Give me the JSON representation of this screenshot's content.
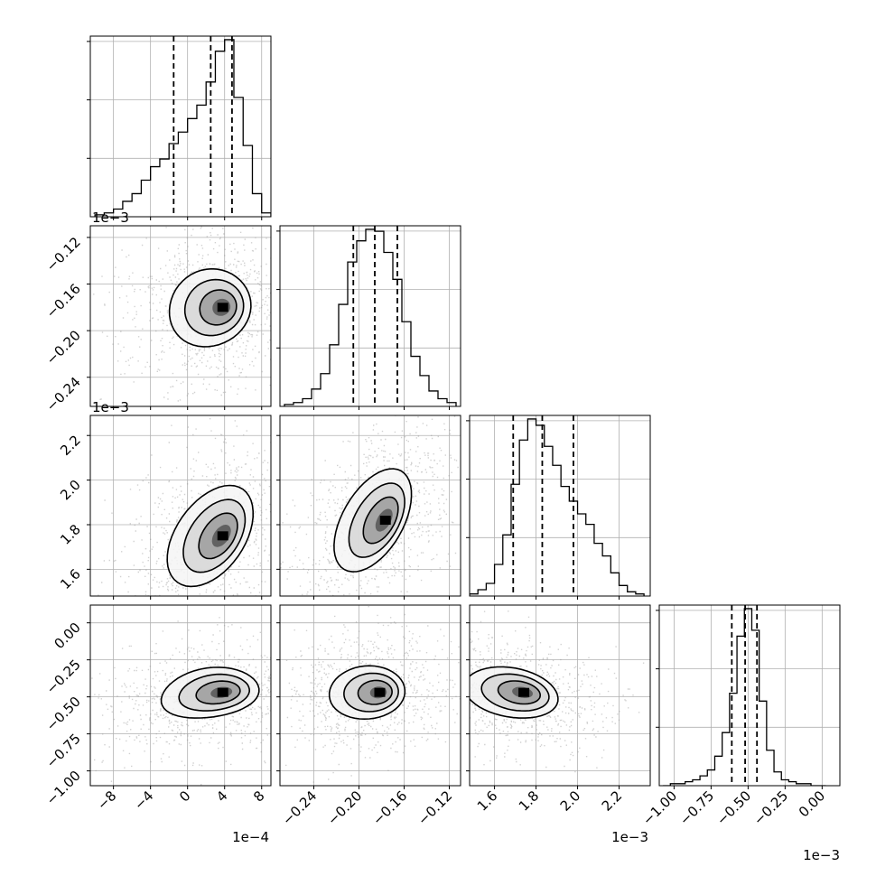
{
  "chart_data": [
    {
      "type": "histogram",
      "variable_index": 0,
      "x_ticks": [
        "−8",
        "−4",
        "0",
        "4",
        "8"
      ],
      "x_tick_values": [
        -8,
        -4,
        0,
        4,
        8
      ],
      "x_offset": "1e−4",
      "xlim": [
        -10.5,
        9
      ],
      "quantiles": [
        -1.5,
        2.5,
        4.8
      ],
      "grid": true,
      "bins": [
        -9.5,
        -8.5,
        -7.5,
        -6.5,
        -5.5,
        -4.5,
        -3.5,
        -2.5,
        -1.5,
        -0.5,
        0.5,
        1.5,
        2.5,
        3.5,
        4.5,
        5.5,
        6.5,
        7.5,
        8.5
      ],
      "counts": [
        1,
        2,
        4,
        8,
        12,
        19,
        26,
        30,
        38,
        44,
        51,
        58,
        70,
        86,
        92,
        62,
        37,
        12,
        2
      ]
    },
    {
      "type": "histogram",
      "variable_index": 1,
      "x_ticks": [
        "−0.24",
        "−0.20",
        "−0.16",
        "−0.12"
      ],
      "x_tick_values": [
        -0.24,
        -0.2,
        -0.16,
        -0.12
      ],
      "xlim": [
        -0.27,
        -0.11
      ],
      "quantiles": [
        -0.205,
        -0.186,
        -0.166
      ],
      "grid": true,
      "bins": [
        -0.262,
        -0.254,
        -0.246,
        -0.238,
        -0.23,
        -0.222,
        -0.214,
        -0.206,
        -0.198,
        -0.19,
        -0.182,
        -0.174,
        -0.166,
        -0.158,
        -0.15,
        -0.142,
        -0.134,
        -0.126,
        -0.118
      ],
      "counts": [
        1,
        2,
        4,
        9,
        17,
        32,
        53,
        75,
        86,
        92,
        91,
        80,
        66,
        44,
        26,
        16,
        8,
        4,
        2
      ]
    },
    {
      "type": "histogram",
      "variable_index": 2,
      "x_ticks": [
        "1.6",
        "1.8",
        "2.0",
        "2.2"
      ],
      "x_tick_values": [
        1.6,
        1.8,
        2.0,
        2.2
      ],
      "x_offset": "1e−3",
      "xlim": [
        1.48,
        2.35
      ],
      "quantiles": [
        1.69,
        1.83,
        1.98
      ],
      "grid": true,
      "bins": [
        1.5,
        1.54,
        1.58,
        1.62,
        1.66,
        1.7,
        1.74,
        1.78,
        1.82,
        1.86,
        1.9,
        1.94,
        1.98,
        2.02,
        2.06,
        2.1,
        2.14,
        2.18,
        2.22,
        2.26,
        2.3
      ],
      "counts": [
        1,
        3,
        6,
        15,
        29,
        53,
        74,
        84,
        81,
        71,
        62,
        52,
        45,
        39,
        34,
        25,
        19,
        11,
        5,
        2,
        1
      ]
    },
    {
      "type": "histogram",
      "variable_index": 3,
      "x_ticks": [
        "−1.00",
        "−0.75",
        "−0.50",
        "−0.25",
        "0.00"
      ],
      "x_tick_values": [
        -1.0,
        -0.75,
        -0.5,
        -0.25,
        0.0
      ],
      "x_offset": "1e−3",
      "xlim": [
        -1.1,
        0.12
      ],
      "quantiles": [
        -0.61,
        -0.52,
        -0.44
      ],
      "grid": true,
      "bins": [
        -1.05,
        -1.0,
        -0.95,
        -0.9,
        -0.85,
        -0.8,
        -0.75,
        -0.7,
        -0.65,
        -0.6,
        -0.55,
        -0.5,
        -0.45,
        -0.4,
        -0.35,
        -0.3,
        -0.25,
        -0.2,
        -0.15,
        -0.1,
        -0.05,
        0.0
      ],
      "counts": [
        0,
        1,
        1,
        2,
        3,
        5,
        8,
        15,
        27,
        47,
        76,
        90,
        79,
        43,
        18,
        7,
        3,
        2,
        1,
        1,
        0,
        0
      ]
    },
    {
      "type": "contour-density",
      "x_variable": 0,
      "y_variable": 1,
      "y_ticks": [
        "−0.12",
        "−0.16",
        "−0.20",
        "−0.24"
      ],
      "y_tick_values": [
        -0.12,
        -0.16,
        -0.2,
        -0.24
      ],
      "y_offset": "1e−3",
      "ylim": [
        -0.265,
        -0.11
      ],
      "peak": [
        4,
        -0.18
      ],
      "grid": true
    },
    {
      "type": "contour-density",
      "x_variable": 0,
      "y_variable": 2,
      "y_ticks": [
        "2.2",
        "2.0",
        "1.8",
        "1.6"
      ],
      "y_tick_values": [
        2.2,
        2.0,
        1.8,
        1.6
      ],
      "y_offset": "1e−3",
      "ylim": [
        1.48,
        2.29
      ],
      "peak": [
        4,
        1.75
      ],
      "grid": true
    },
    {
      "type": "contour-density",
      "x_variable": 1,
      "y_variable": 2,
      "peak": [
        -0.175,
        1.82
      ],
      "grid": true
    },
    {
      "type": "contour-density",
      "x_variable": 0,
      "y_variable": 3,
      "y_ticks": [
        "0.00",
        "−0.25",
        "−0.50",
        "−0.75",
        "−1.00"
      ],
      "y_tick_values": [
        0.0,
        -0.25,
        -0.5,
        -0.75,
        -1.0
      ],
      "ylim": [
        -1.1,
        0.12
      ],
      "peak": [
        4,
        -0.47
      ],
      "grid": true
    },
    {
      "type": "contour-density",
      "x_variable": 1,
      "y_variable": 3,
      "peak": [
        -0.18,
        -0.47
      ],
      "grid": true
    },
    {
      "type": "contour-density",
      "x_variable": 2,
      "y_variable": 3,
      "peak": [
        1.75,
        -0.47
      ],
      "grid": true
    }
  ]
}
